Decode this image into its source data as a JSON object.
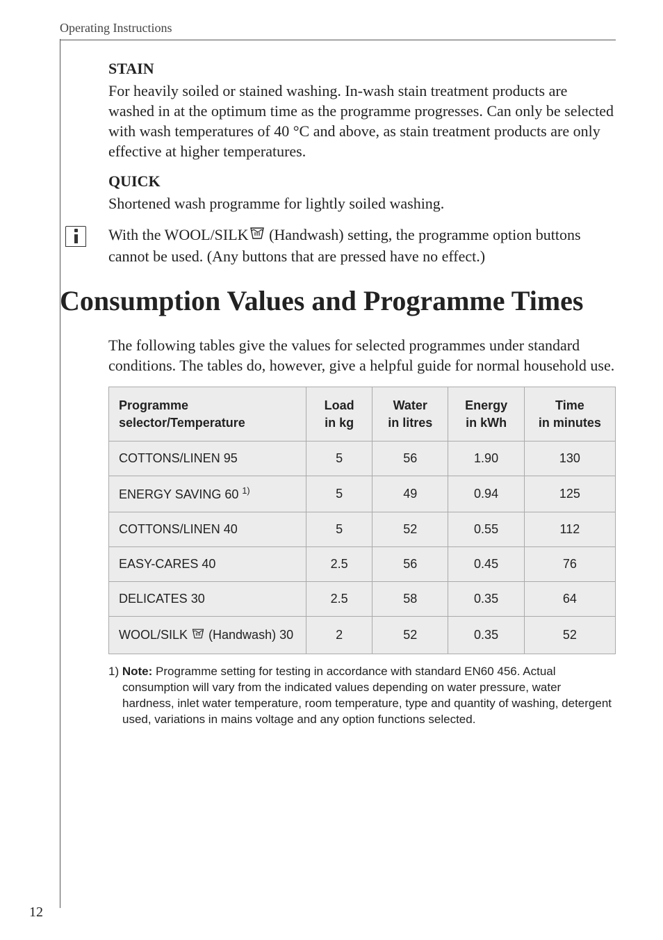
{
  "running_head": "Operating Instructions",
  "page_number": "12",
  "sections": {
    "stain": {
      "heading": "STAIN",
      "body": "For heavily soiled or stained washing. In-wash stain treatment products are washed in at the optimum time as the programme progresses. Can only be selected with wash temperatures of 40 °C and above, as stain treatment products are only effective at higher temperatures."
    },
    "quick": {
      "heading": "QUICK",
      "body": "Shortened wash programme for lightly soiled washing."
    },
    "info_note": {
      "pre": "With the WOOL/SILK",
      "post": " (Handwash) setting, the programme option buttons cannot be used. (Any buttons that are pressed have no effect.)"
    }
  },
  "main_heading": "Consumption Values and Programme Times",
  "intro": "The following tables give the values for selected programmes under standard conditions. The tables do, however, give a helpful guide for normal household use.",
  "table": {
    "headers": {
      "prog": "Programme selector/Temperature",
      "load_l1": "Load",
      "load_l2": "in kg",
      "water_l1": "Water",
      "water_l2": "in litres",
      "energy_l1": "Energy",
      "energy_l2": "in kWh",
      "time_l1": "Time",
      "time_l2": "in minutes"
    },
    "rows": [
      {
        "prog": "COTTONS/LINEN 95",
        "sup": "",
        "hw": false,
        "load": "5",
        "water": "56",
        "energy": "1.90",
        "time": "130"
      },
      {
        "prog": "ENERGY SAVING 60 ",
        "sup": "1)",
        "hw": false,
        "load": "5",
        "water": "49",
        "energy": "0.94",
        "time": "125"
      },
      {
        "prog": "COTTONS/LINEN 40",
        "sup": "",
        "hw": false,
        "load": "5",
        "water": "52",
        "energy": "0.55",
        "time": "112"
      },
      {
        "prog": "EASY-CARES 40",
        "sup": "",
        "hw": false,
        "load": "2.5",
        "water": "56",
        "energy": "0.45",
        "time": "76"
      },
      {
        "prog": "DELICATES 30",
        "sup": "",
        "hw": false,
        "load": "2.5",
        "water": "58",
        "energy": "0.35",
        "time": "64"
      },
      {
        "prog": "WOOL/SILK ",
        "sup": "",
        "hw": true,
        "hw_tail": " (Handwash) 30",
        "load": "2",
        "water": "52",
        "energy": "0.35",
        "time": "52"
      }
    ],
    "col_widths": {
      "prog": "39%",
      "load": "13%",
      "water": "15%",
      "energy": "15%",
      "time": "18%"
    }
  },
  "footnote": {
    "marker": "1)",
    "bold": "Note:",
    "text": " Programme setting for testing in accordance with standard EN60 456. Actual consumption will vary from the indicated values depending on water pressure, water hardness, inlet water temperature, room temperature, type and quantity of washing, detergent used, variations in mains voltage and any option functions selected."
  },
  "icons": {
    "handwash_svg_title": "handwash"
  },
  "colors": {
    "text": "#222222",
    "table_bg": "#ececec",
    "border": "#aaaaaa",
    "rule": "#555555"
  }
}
